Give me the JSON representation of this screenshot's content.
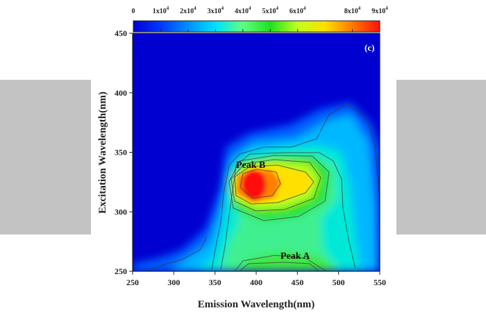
{
  "chart_data": {
    "type": "heatmap",
    "panel_label": "(c)",
    "xlabel": "Emission Wavelength(nm)",
    "ylabel": "Excitation Wavelength(nm)",
    "xlim": [
      250,
      550
    ],
    "ylim": [
      250,
      450
    ],
    "x_ticks": [
      "250",
      "300",
      "350",
      "400",
      "450",
      "500",
      "550"
    ],
    "y_ticks": [
      "250",
      "300",
      "350",
      "400",
      "450"
    ],
    "colorbar": {
      "min": 0,
      "max": 90000,
      "tick_labels": [
        {
          "base": "0",
          "exp": ""
        },
        {
          "base": "1x10",
          "exp": "4"
        },
        {
          "base": "2x10",
          "exp": "4"
        },
        {
          "base": "3x10",
          "exp": "4"
        },
        {
          "base": "4x10",
          "exp": "4"
        },
        {
          "base": "5x10",
          "exp": "4"
        },
        {
          "base": "6x10",
          "exp": "4"
        },
        {
          "base": "8x10",
          "exp": "4"
        },
        {
          "base": "9x10",
          "exp": "4"
        }
      ],
      "tick_values": [
        0,
        10000,
        20000,
        30000,
        40000,
        50000,
        60000,
        80000,
        90000
      ],
      "colors": [
        "#0000d0",
        "#0038ff",
        "#0090ff",
        "#00e0ff",
        "#60ff80",
        "#20e020",
        "#c0ff20",
        "#ffe000",
        "#ff7800",
        "#ff1010"
      ]
    },
    "peaks": [
      {
        "label": "Peak B",
        "em": 395,
        "ex": 326,
        "intensity": 90000
      },
      {
        "label": "Peak A",
        "em": 430,
        "ex": 260,
        "intensity": 40000
      }
    ]
  }
}
